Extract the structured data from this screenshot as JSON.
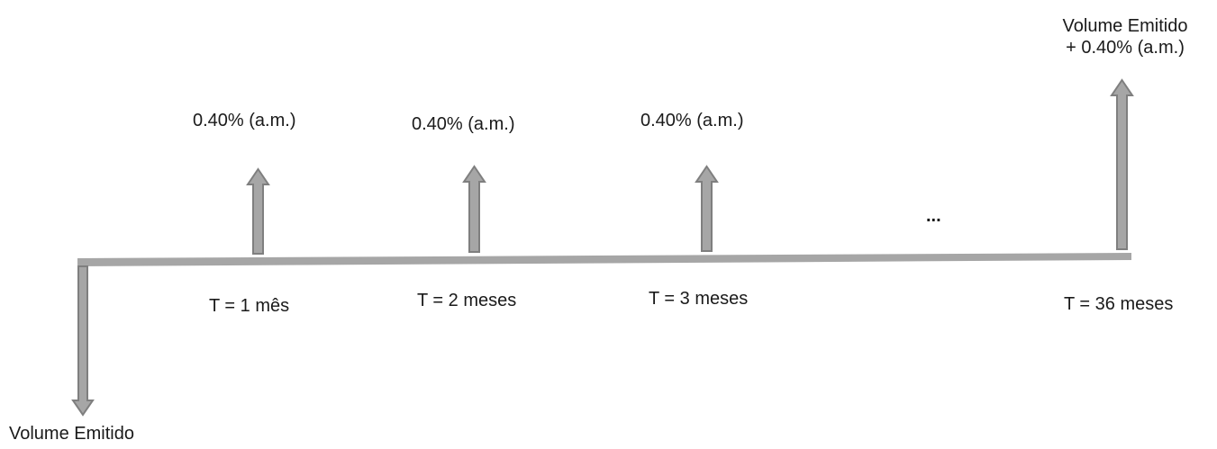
{
  "diagram": {
    "initial_outflow_label": "Volume Emitido",
    "periods": [
      {
        "time_label": "T = 1 mês",
        "coupon_label": "0.40% (a.m.)"
      },
      {
        "time_label": "T = 2 meses",
        "coupon_label": "0.40% (a.m.)"
      },
      {
        "time_label": "T = 3 meses",
        "coupon_label": "0.40% (a.m.)"
      }
    ],
    "ellipsis": "...",
    "final": {
      "time_label": "T = 36 meses",
      "label_line1": "Volume Emitido",
      "label_line2": "+ 0.40% (a.m.)"
    },
    "colors": {
      "arrow_fill": "#a6a6a6",
      "arrow_stroke": "#7f7f7f",
      "timeline": "#a6a6a6"
    }
  }
}
